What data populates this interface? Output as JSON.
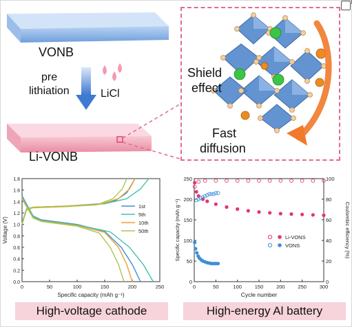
{
  "diagram": {
    "vonb_label": "VONB",
    "process_label_line1": "pre",
    "process_label_line2": "lithiation",
    "reagent_label": "LiCl",
    "li_vonb_label": "Li-VONB",
    "shield_line1": "Shield",
    "shield_line2": "effect",
    "fast_line1": "Fast",
    "fast_line2": "diffusion",
    "colors": {
      "vonb_slab": "#8fb6e6",
      "li_vonb_slab": "#f2a7b8",
      "dashed_border": "#e26a8c",
      "arrow_orange": "#f07a2a",
      "octahedra": "#5b8fcf",
      "green_ion": "#3cc447",
      "orange_ion": "#ee8a22"
    },
    "icons": [
      "down-arrow-icon",
      "droplet-icon",
      "orange-arrow-icon",
      "crystal-structure-icon"
    ]
  },
  "captions": {
    "left": "High-voltage cathode",
    "right": "High-energy Al battery"
  },
  "chart_data": [
    {
      "type": "line",
      "xlabel": "Specific capacity (mAh g⁻¹)",
      "ylabel": "Voltage (V)",
      "xlim": [
        0,
        250
      ],
      "ylim": [
        0,
        1.8
      ],
      "xticks": [
        "0",
        "50",
        "100",
        "150",
        "200",
        "250"
      ],
      "yticks": [
        "0.0",
        "0.2",
        "0.4",
        "0.6",
        "0.8",
        "1.0",
        "1.2",
        "1.4",
        "1.6",
        "1.8"
      ],
      "legend_position": "right",
      "series": [
        {
          "name": "1st",
          "color": "#3b8fd8",
          "charge": [
            [
              0,
              1.02
            ],
            [
              8,
              1.27
            ],
            [
              20,
              1.3
            ],
            [
              80,
              1.32
            ],
            [
              140,
              1.36
            ],
            [
              170,
              1.42
            ],
            [
              190,
              1.55
            ],
            [
              205,
              1.8
            ]
          ],
          "discharge": [
            [
              0,
              1.5
            ],
            [
              10,
              1.32
            ],
            [
              20,
              1.15
            ],
            [
              35,
              1.08
            ],
            [
              100,
              1.0
            ],
            [
              150,
              0.88
            ],
            [
              180,
              0.6
            ],
            [
              200,
              0.3
            ],
            [
              215,
              0.0
            ]
          ]
        },
        {
          "name": "5th",
          "color": "#42c0b0",
          "charge": [
            [
              0,
              1.0
            ],
            [
              8,
              1.26
            ],
            [
              20,
              1.3
            ],
            [
              80,
              1.32
            ],
            [
              150,
              1.36
            ],
            [
              190,
              1.45
            ],
            [
              215,
              1.62
            ],
            [
              230,
              1.8
            ]
          ],
          "discharge": [
            [
              0,
              1.48
            ],
            [
              10,
              1.3
            ],
            [
              20,
              1.14
            ],
            [
              35,
              1.07
            ],
            [
              100,
              0.99
            ],
            [
              160,
              0.87
            ],
            [
              195,
              0.6
            ],
            [
              220,
              0.3
            ],
            [
              238,
              0.0
            ]
          ]
        },
        {
          "name": "10th",
          "color": "#f0a030",
          "charge": [
            [
              0,
              1.0
            ],
            [
              8,
              1.26
            ],
            [
              20,
              1.3
            ],
            [
              80,
              1.32
            ],
            [
              140,
              1.35
            ],
            [
              175,
              1.45
            ],
            [
              195,
              1.62
            ],
            [
              205,
              1.8
            ]
          ],
          "discharge": [
            [
              0,
              1.46
            ],
            [
              10,
              1.29
            ],
            [
              20,
              1.12
            ],
            [
              35,
              1.06
            ],
            [
              100,
              0.98
            ],
            [
              150,
              0.86
            ],
            [
              175,
              0.6
            ],
            [
              190,
              0.3
            ],
            [
              200,
              0.0
            ]
          ]
        },
        {
          "name": "50th",
          "color": "#a6c84a",
          "charge": [
            [
              0,
              1.0
            ],
            [
              8,
              1.25
            ],
            [
              20,
              1.29
            ],
            [
              80,
              1.31
            ],
            [
              135,
              1.34
            ],
            [
              165,
              1.45
            ],
            [
              182,
              1.62
            ],
            [
              190,
              1.8
            ]
          ],
          "discharge": [
            [
              0,
              1.44
            ],
            [
              10,
              1.28
            ],
            [
              20,
              1.11
            ],
            [
              35,
              1.05
            ],
            [
              100,
              0.97
            ],
            [
              140,
              0.85
            ],
            [
              160,
              0.6
            ],
            [
              175,
              0.3
            ],
            [
              185,
              0.0
            ]
          ]
        }
      ]
    },
    {
      "type": "scatter",
      "xlabel": "Cycle number",
      "ylabel": "Specific capacity (mAh g⁻¹)",
      "y2label": "Coulombic efficiency (%)",
      "xlim": [
        0,
        300
      ],
      "ylim": [
        0,
        250
      ],
      "y2lim": [
        0,
        100
      ],
      "xticks": [
        "0",
        "50",
        "100",
        "150",
        "200",
        "250",
        "300"
      ],
      "yticks": [
        "0",
        "50",
        "100",
        "150",
        "200",
        "250"
      ],
      "y2ticks": [
        "0",
        "20",
        "40",
        "60",
        "80",
        "100"
      ],
      "legend_position": "center-right",
      "series": [
        {
          "name": "Li-VONS",
          "color": "#e8336e",
          "axis": "left",
          "marker": "filled",
          "points": [
            [
              1,
              240
            ],
            [
              5,
              218
            ],
            [
              10,
              208
            ],
            [
              20,
              200
            ],
            [
              30,
              195
            ],
            [
              50,
              188
            ],
            [
              75,
              181
            ],
            [
              100,
              176
            ],
            [
              125,
              172
            ],
            [
              150,
              169
            ],
            [
              175,
              167
            ],
            [
              200,
              165
            ],
            [
              225,
              164
            ],
            [
              250,
              163
            ],
            [
              275,
              162
            ],
            [
              300,
              161
            ]
          ]
        },
        {
          "name": "Li-VONS",
          "color": "#e8336e",
          "axis": "right",
          "marker": "open",
          "points": [
            [
              1,
              92
            ],
            [
              10,
              97
            ],
            [
              25,
              98
            ],
            [
              50,
              98
            ],
            [
              75,
              98
            ],
            [
              100,
              98
            ],
            [
              125,
              98
            ],
            [
              150,
              98
            ],
            [
              175,
              98
            ],
            [
              200,
              98
            ],
            [
              225,
              98
            ],
            [
              250,
              98
            ],
            [
              275,
              98
            ],
            [
              300,
              98
            ]
          ]
        },
        {
          "name": "VONS",
          "color": "#3b8fd8",
          "axis": "left",
          "marker": "filled",
          "points": [
            [
              1,
              95
            ],
            [
              3,
              80
            ],
            [
              6,
              70
            ],
            [
              9,
              62
            ],
            [
              12,
              57
            ],
            [
              16,
              53
            ],
            [
              20,
              50
            ],
            [
              25,
              48
            ],
            [
              30,
              46
            ],
            [
              35,
              45
            ],
            [
              40,
              44
            ],
            [
              45,
              44
            ],
            [
              50,
              44
            ],
            [
              55,
              44
            ]
          ]
        },
        {
          "name": "VONS",
          "color": "#3b8fd8",
          "axis": "right",
          "marker": "open",
          "points": [
            [
              5,
              79
            ],
            [
              10,
              80
            ],
            [
              15,
              81
            ],
            [
              20,
              82
            ],
            [
              25,
              83
            ],
            [
              30,
              84
            ],
            [
              35,
              85
            ],
            [
              40,
              85
            ],
            [
              45,
              85
            ],
            [
              50,
              86
            ],
            [
              55,
              86
            ]
          ]
        }
      ]
    }
  ]
}
